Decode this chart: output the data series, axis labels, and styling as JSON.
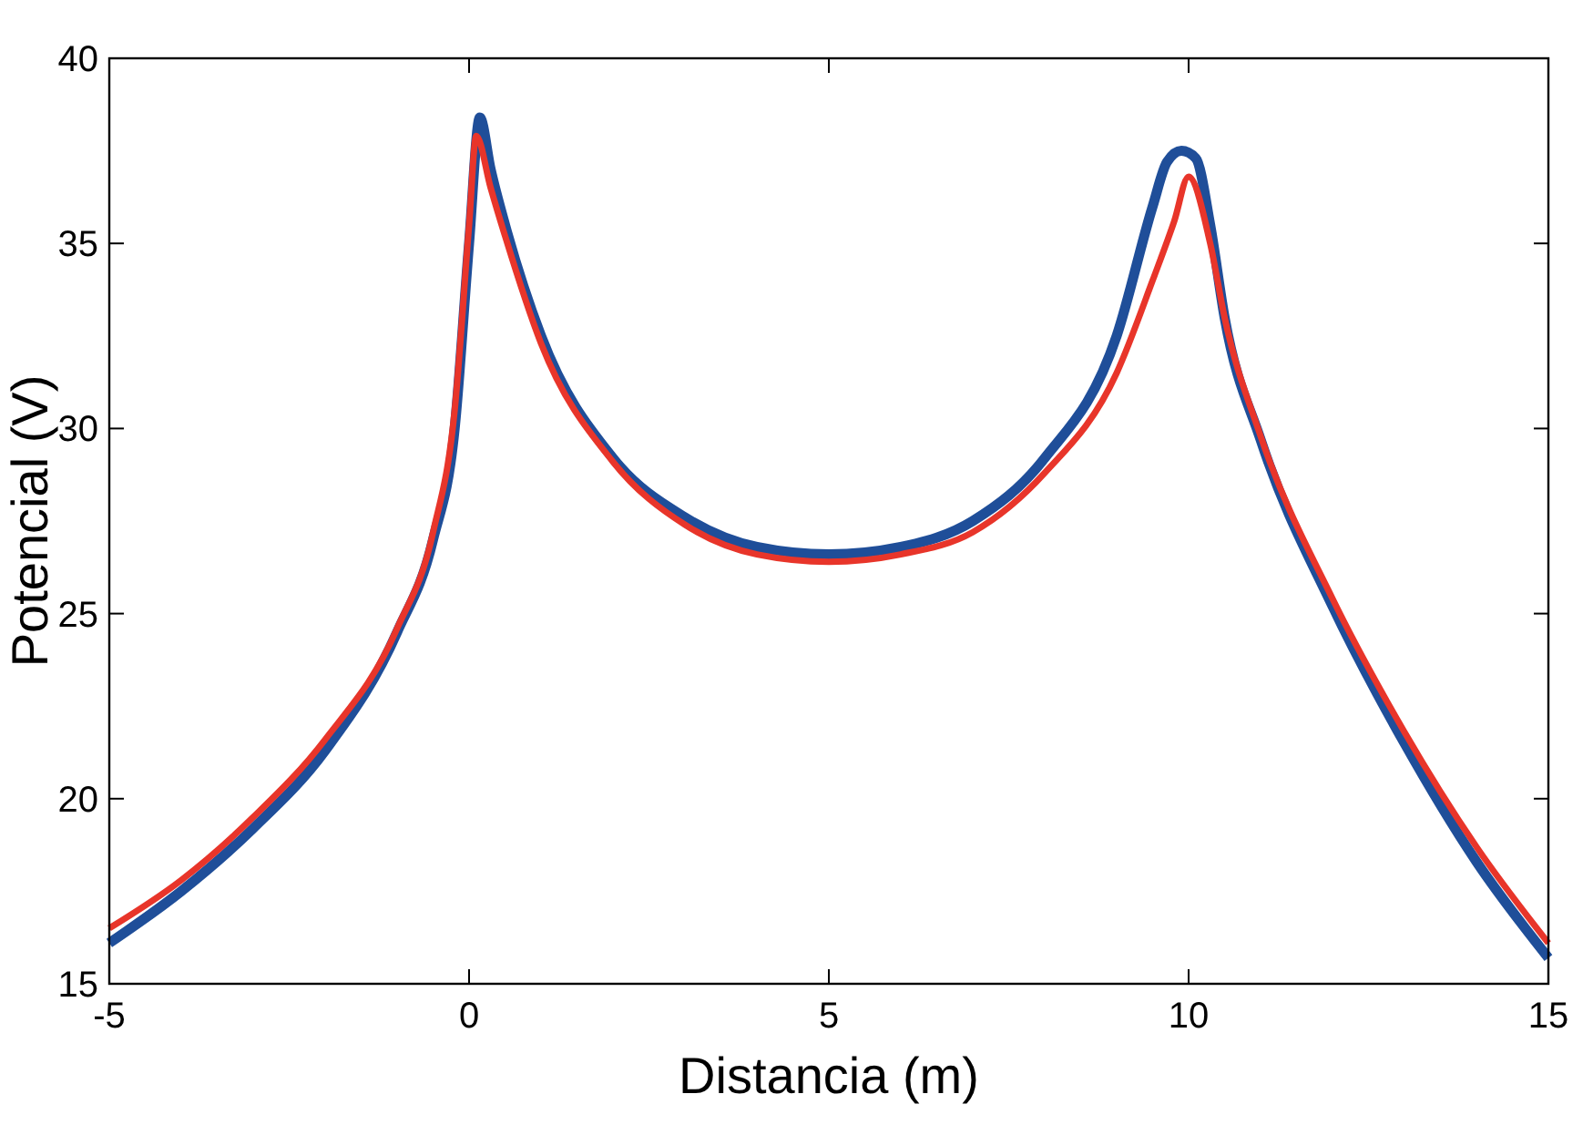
{
  "chart_data": {
    "type": "line",
    "xlabel": "Distancia (m)",
    "ylabel": "Potencial (V)",
    "xlim": [
      -5,
      15
    ],
    "ylim": [
      15,
      40
    ],
    "xticks": [
      -5,
      0,
      5,
      10,
      15
    ],
    "yticks": [
      15,
      20,
      25,
      30,
      35,
      40
    ],
    "grid": false,
    "line_style": "solid",
    "marker": "none",
    "series": [
      {
        "color": "#1f4e99",
        "x": [
          -5,
          -4,
          -3,
          -2,
          -1,
          -0.5,
          -0.2,
          0,
          0.15,
          0.3,
          0.5,
          1,
          2,
          3,
          4,
          5,
          6,
          7,
          8,
          9,
          9.5,
          9.7,
          9.9,
          10.1,
          10.3,
          10.5,
          11,
          12,
          13,
          14,
          15
        ],
        "values": [
          16.1,
          17.5,
          19.2,
          21.3,
          24.5,
          27,
          30,
          35,
          38.4,
          37,
          35.5,
          32.5,
          29.2,
          27.6,
          26.8,
          26.6,
          26.8,
          27.5,
          29.2,
          32.5,
          36,
          37.2,
          37.5,
          37.3,
          35.5,
          33,
          29.7,
          25.2,
          21.5,
          18.3,
          15.7
        ]
      },
      {
        "color": "#e8352a",
        "x": [
          -5,
          -4,
          -3,
          -2,
          -1,
          -0.5,
          -0.2,
          0,
          0.1,
          0.3,
          0.5,
          1,
          2,
          3,
          4,
          5,
          6,
          7,
          8,
          9,
          9.5,
          9.8,
          10,
          10.3,
          10.5,
          11,
          12,
          13,
          14,
          15
        ],
        "values": [
          16.5,
          17.8,
          19.5,
          21.6,
          24.6,
          27.2,
          30.5,
          35.5,
          37.9,
          36.5,
          35.2,
          32.3,
          29.1,
          27.4,
          26.6,
          26.4,
          26.6,
          27.2,
          28.8,
          31.5,
          34,
          35.6,
          36.8,
          35,
          33,
          29.8,
          25.4,
          21.8,
          18.7,
          16.1
        ]
      }
    ]
  }
}
